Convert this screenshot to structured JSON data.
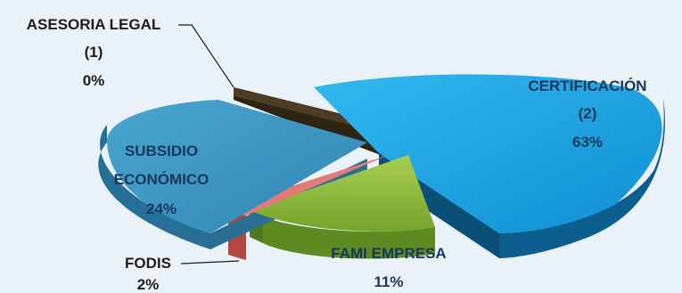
{
  "chart_data": {
    "type": "pie",
    "variant": "3d-exploded",
    "slices": [
      {
        "key": "certificacion",
        "name": "CERTIFICACIÓN",
        "count": "(2)",
        "percent": "63%",
        "value": 63,
        "color": "#13a2e2"
      },
      {
        "key": "fami",
        "name": "FAMI EMPRESA",
        "count": "",
        "percent": "11%",
        "value": 11,
        "color": "#8fbd3c"
      },
      {
        "key": "fodis",
        "name": "FODIS",
        "count": "",
        "percent": "2%",
        "value": 2,
        "color": "#e27b76"
      },
      {
        "key": "subsidio",
        "name": "SUBSIDIO ECONÓMICO",
        "name_lines": [
          "SUBSIDIO",
          "ECONÓMICO"
        ],
        "count": "",
        "percent": "24%",
        "value": 24,
        "color": "#3d97c2"
      },
      {
        "key": "asesoria",
        "name": "ASESORIA LEGAL",
        "count": "(1)",
        "percent": "0%",
        "value": 0,
        "color": "#4b3c23"
      }
    ]
  }
}
